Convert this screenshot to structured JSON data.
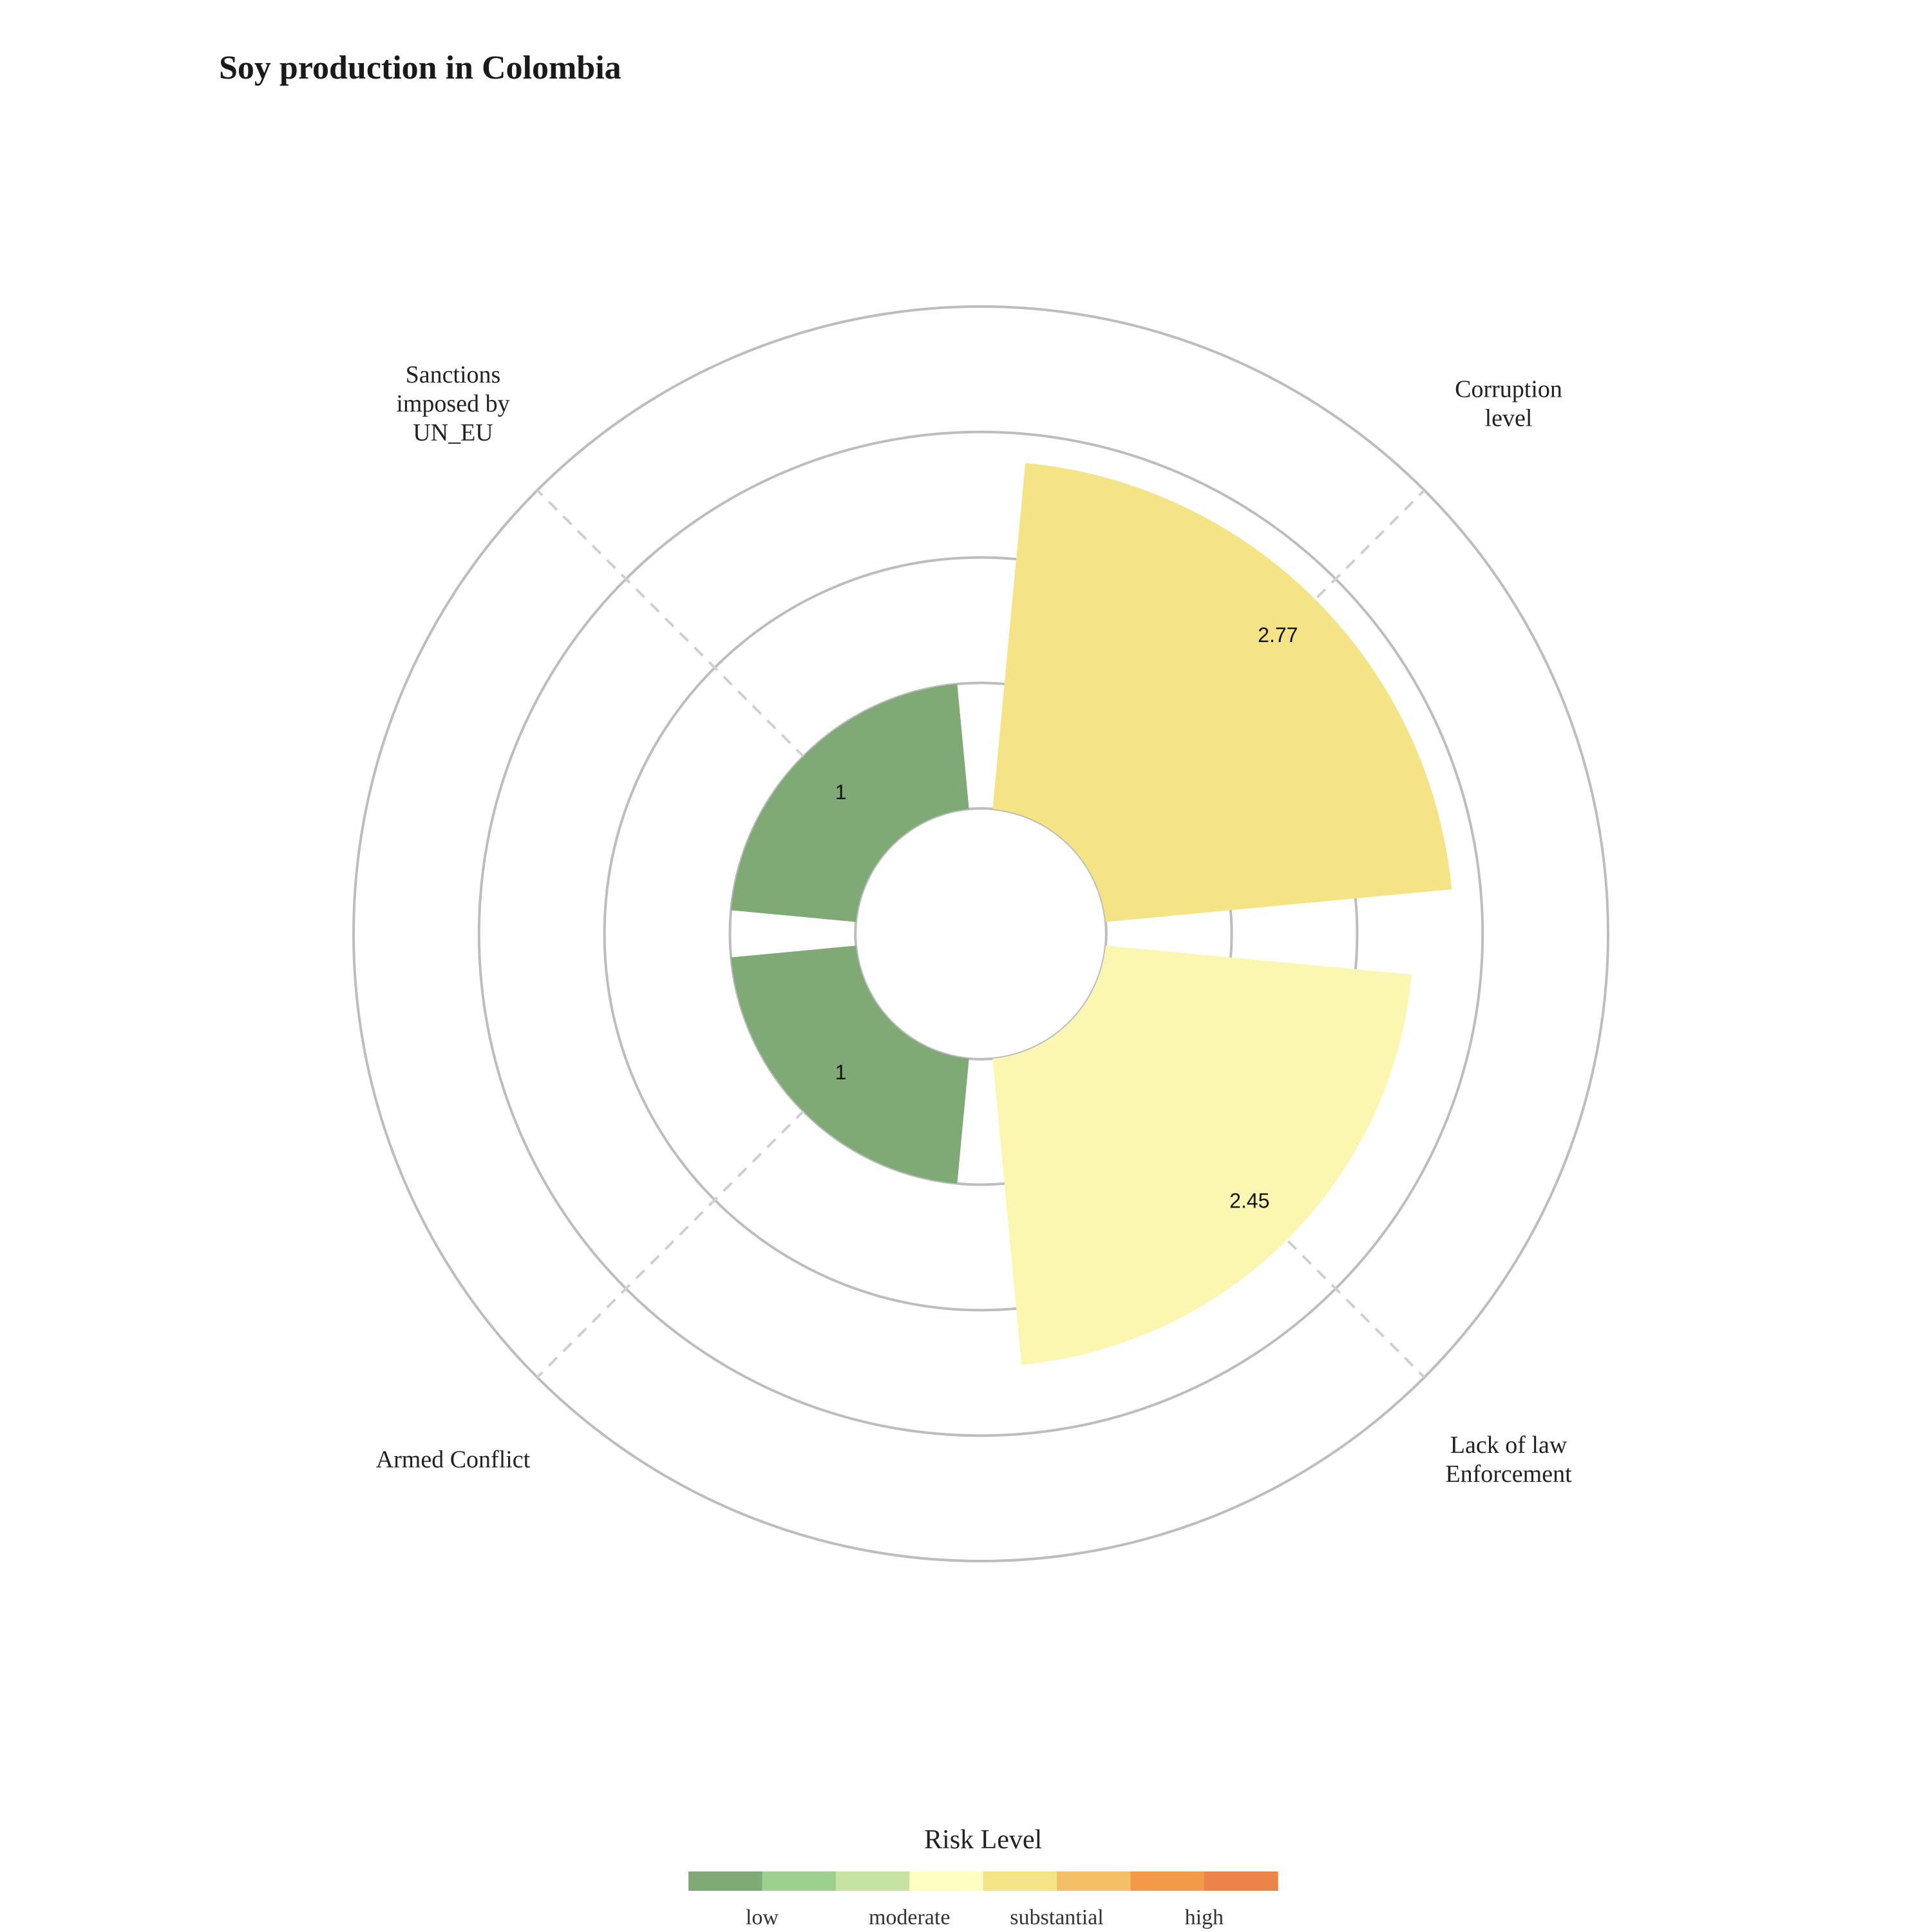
{
  "chart_data": {
    "type": "polar-bar",
    "title": "Soy production in Colombia",
    "categories": [
      "Corruption level",
      "Lack of law Enforcement",
      "Armed Conflict",
      "Sanctions imposed by UN_EU"
    ],
    "category_label_lines": [
      [
        "Corruption",
        "level"
      ],
      [
        "Lack of law",
        "Enforcement"
      ],
      [
        "Armed Conflict"
      ],
      [
        "Sanctions",
        "imposed by",
        "UN_EU"
      ]
    ],
    "values": [
      2.77,
      2.45,
      1,
      1
    ],
    "value_labels": [
      "2.77",
      "2.45",
      "1",
      "1"
    ],
    "bar_colors": [
      "#f4e485",
      "#fbf6b0",
      "#7faa76",
      "#7faa76"
    ],
    "radial_axis": {
      "min": -1,
      "max": 4,
      "gridlines": [
        0,
        1,
        2,
        3,
        4
      ]
    },
    "legend": {
      "title": "Risk Level",
      "position": "bottom",
      "colors": [
        "#7faa76",
        "#9bd08e",
        "#c6e3a1",
        "#fefdc2",
        "#f4e485",
        "#f4c067",
        "#f29a48",
        "#ec8449"
      ],
      "labels": [
        "low",
        "moderate",
        "substantial",
        "high"
      ]
    }
  }
}
